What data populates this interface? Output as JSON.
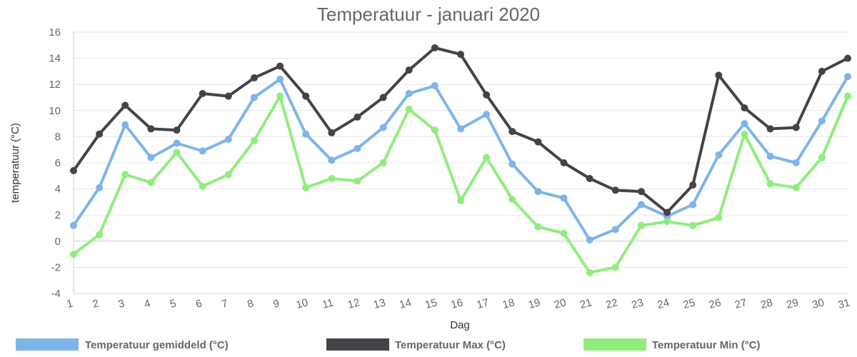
{
  "chart_data": {
    "type": "line",
    "title": "Temperatuur - januari 2020",
    "xlabel": "Dag",
    "ylabel": "temperatuur (°C)",
    "ylim": [
      -4,
      16
    ],
    "yticks": [
      -4,
      -2,
      0,
      2,
      4,
      6,
      8,
      10,
      12,
      14,
      16
    ],
    "categories": [
      "1",
      "2",
      "3",
      "4",
      "5",
      "6",
      "7",
      "8",
      "9",
      "10",
      "11",
      "12",
      "13",
      "14",
      "15",
      "16",
      "17",
      "18",
      "19",
      "20",
      "21",
      "22",
      "23",
      "24",
      "25",
      "26",
      "27",
      "28",
      "29",
      "30",
      "31"
    ],
    "grid": true,
    "legend_position": "bottom",
    "series": [
      {
        "name": "Temperatuur gemiddeld (°C)",
        "color": "#7eb4ea",
        "values": [
          1.2,
          4.1,
          8.9,
          6.4,
          7.5,
          6.9,
          7.8,
          11.0,
          12.4,
          8.2,
          6.2,
          7.1,
          8.7,
          11.3,
          11.9,
          8.6,
          9.7,
          5.9,
          3.8,
          3.3,
          0.1,
          0.9,
          2.8,
          1.9,
          2.8,
          6.6,
          9.0,
          6.5,
          6.0,
          9.2,
          12.6
        ]
      },
      {
        "name": "Temperatuur Max (°C)",
        "color": "#434348",
        "values": [
          5.4,
          8.2,
          10.4,
          8.6,
          8.5,
          11.3,
          11.1,
          12.5,
          13.4,
          11.1,
          8.3,
          9.5,
          11.0,
          13.1,
          14.8,
          14.3,
          11.2,
          8.4,
          7.6,
          6.0,
          4.8,
          3.9,
          3.8,
          2.2,
          4.3,
          12.7,
          10.2,
          8.6,
          8.7,
          13.0,
          14.0
        ]
      },
      {
        "name": "Temperatuur Min (°C)",
        "color": "#90ed7d",
        "values": [
          -1.0,
          0.5,
          5.1,
          4.5,
          6.8,
          4.2,
          5.1,
          7.7,
          11.1,
          4.1,
          4.8,
          4.6,
          6.0,
          10.1,
          8.5,
          3.1,
          6.4,
          3.2,
          1.1,
          0.6,
          -2.4,
          -2.0,
          1.2,
          1.5,
          1.2,
          1.8,
          8.2,
          4.4,
          4.1,
          6.4,
          11.1
        ]
      }
    ]
  }
}
